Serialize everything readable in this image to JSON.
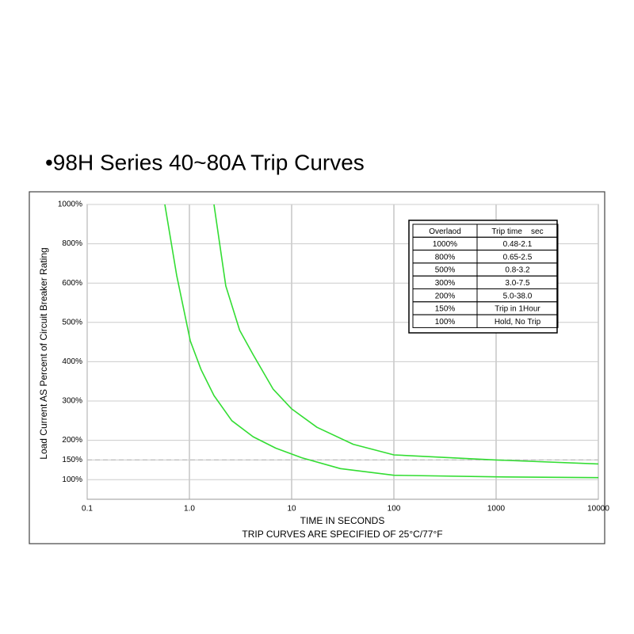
{
  "chart_data": {
    "type": "line",
    "title": "•98H Series 40~80A Trip Curves",
    "x_label": "TIME IN SECONDS",
    "x_note": "TRIP CURVES ARE SPECIFIED OF 25°C/77°F",
    "y_label": "Load Current AS Percent of Circuit Breaker Rating",
    "x_scale": "log",
    "xlim": [
      0.1,
      10000
    ],
    "xticks": [
      0.1,
      {
        "value": 1,
        "label": "1.0"
      },
      10,
      100,
      1000,
      10000
    ],
    "ylim": [
      50,
      1000
    ],
    "yticks": [
      {
        "value": 100,
        "label": "100%"
      },
      {
        "value": 150,
        "label": "150%"
      },
      {
        "value": 200,
        "label": "200%"
      },
      {
        "value": 300,
        "label": "300%"
      },
      {
        "value": 400,
        "label": "400%"
      },
      {
        "value": 500,
        "label": "500%"
      },
      {
        "value": 600,
        "label": "600%"
      },
      {
        "value": 800,
        "label": "800%"
      },
      {
        "value": 1000,
        "label": "1000%"
      }
    ],
    "grid": true,
    "reference_line": 150,
    "series": [
      {
        "color": "#33dd33",
        "x": [
          0.575,
          0.75,
          1.02,
          1.3,
          1.74,
          2.6,
          4.2,
          7,
          12.4,
          30,
          100,
          1000,
          10000
        ],
        "values": [
          1000,
          640,
          453,
          380,
          314,
          250,
          209,
          180,
          156,
          128,
          111,
          107,
          105
        ]
      },
      {
        "color": "#33dd33",
        "x": [
          1.74,
          2.27,
          3.1,
          4.2,
          6.6,
          10,
          17.7,
          40,
          100,
          1000,
          10000
        ],
        "values": [
          1000,
          593,
          480,
          418,
          330,
          280,
          233,
          190,
          163,
          150,
          140
        ]
      }
    ],
    "table": {
      "header": [
        "Overlaod",
        "Trip time    sec"
      ],
      "rows": [
        [
          "1000%",
          "0.48-2.1"
        ],
        [
          "800%",
          "0.65-2.5"
        ],
        [
          "500%",
          "0.8-3.2"
        ],
        [
          "300%",
          "3.0-7.5"
        ],
        [
          "200%",
          "5.0-38.0"
        ],
        [
          "150%",
          "Trip in 1Hour"
        ],
        [
          "100%",
          "Hold, No Trip"
        ]
      ]
    }
  }
}
